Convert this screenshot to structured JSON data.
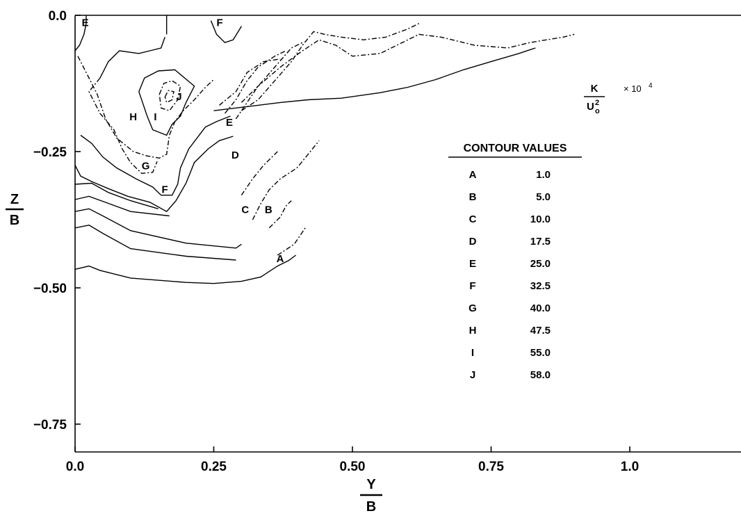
{
  "chart_data": {
    "type": "contour",
    "x_axis": {
      "label_numerator": "Y",
      "label_denominator": "B",
      "ticks": [
        {
          "value": 0.0,
          "label": "0.0"
        },
        {
          "value": 0.25,
          "label": "0.25"
        },
        {
          "value": 0.5,
          "label": "0.50"
        },
        {
          "value": 0.75,
          "label": "0.75"
        },
        {
          "value": 1.0,
          "label": "1.0"
        }
      ],
      "range": [
        0.0,
        1.2
      ]
    },
    "y_axis": {
      "label_numerator": "Z",
      "label_denominator": "B",
      "ticks": [
        {
          "value": 0.0,
          "label": "0.0"
        },
        {
          "value": -0.25,
          "label": "−0.25"
        },
        {
          "value": -0.5,
          "label": "−0.50"
        },
        {
          "value": -0.75,
          "label": "−0.75"
        }
      ],
      "range": [
        -0.8,
        0.0
      ]
    },
    "quantity": {
      "numerator": "K",
      "denominator": "U",
      "denominator_sub": "o",
      "denominator_sup": "2",
      "multiplier": "× 10",
      "multiplier_exp": "4"
    },
    "legend": {
      "title": "CONTOUR VALUES",
      "entries": [
        {
          "label": "A",
          "value": "1.0"
        },
        {
          "label": "B",
          "value": "5.0"
        },
        {
          "label": "C",
          "value": "10.0"
        },
        {
          "label": "D",
          "value": "17.5"
        },
        {
          "label": "E",
          "value": "25.0"
        },
        {
          "label": "F",
          "value": "32.5"
        },
        {
          "label": "G",
          "value": "40.0"
        },
        {
          "label": "H",
          "value": "47.5"
        },
        {
          "label": "I",
          "value": "55.0"
        },
        {
          "label": "J",
          "value": "58.0"
        }
      ]
    },
    "contour_labels": [
      {
        "label": "E",
        "x": 0.012,
        "y": -0.012
      },
      {
        "label": "F",
        "x": 0.255,
        "y": -0.012
      },
      {
        "label": "J",
        "x": 0.182,
        "y": -0.148
      },
      {
        "label": "H",
        "x": 0.098,
        "y": -0.185
      },
      {
        "label": "I",
        "x": 0.142,
        "y": -0.185
      },
      {
        "label": "E",
        "x": 0.272,
        "y": -0.195
      },
      {
        "label": "D",
        "x": 0.282,
        "y": -0.255
      },
      {
        "label": "G",
        "x": 0.12,
        "y": -0.275
      },
      {
        "label": "F",
        "x": 0.156,
        "y": -0.318
      },
      {
        "label": "C",
        "x": 0.3,
        "y": -0.355
      },
      {
        "label": "B",
        "x": 0.342,
        "y": -0.355
      },
      {
        "label": "A",
        "x": 0.363,
        "y": -0.445
      }
    ],
    "contours": [
      {
        "level": "A",
        "dashed": false,
        "points": [
          [
            0.0,
            -0.466
          ],
          [
            0.025,
            -0.46
          ],
          [
            0.045,
            -0.468
          ],
          [
            0.1,
            -0.482
          ],
          [
            0.2,
            -0.49
          ],
          [
            0.25,
            -0.492
          ],
          [
            0.3,
            -0.488
          ],
          [
            0.335,
            -0.48
          ],
          [
            0.365,
            -0.46
          ],
          [
            0.385,
            -0.45
          ],
          [
            0.398,
            -0.44
          ]
        ]
      },
      {
        "level": "A",
        "dashed": false,
        "points": [
          [
            0.0,
            -0.39
          ],
          [
            0.025,
            -0.385
          ],
          [
            0.05,
            -0.4
          ],
          [
            0.1,
            -0.428
          ],
          [
            0.2,
            -0.442
          ],
          [
            0.29,
            -0.449
          ]
        ]
      },
      {
        "level": "B",
        "dashed": false,
        "points": [
          [
            0.0,
            -0.36
          ],
          [
            0.025,
            -0.355
          ],
          [
            0.05,
            -0.368
          ],
          [
            0.1,
            -0.395
          ],
          [
            0.2,
            -0.418
          ],
          [
            0.29,
            -0.427
          ],
          [
            0.3,
            -0.42
          ]
        ]
      },
      {
        "level": "C",
        "dashed": false,
        "points": [
          [
            0.0,
            -0.338
          ],
          [
            0.025,
            -0.332
          ],
          [
            0.06,
            -0.345
          ],
          [
            0.1,
            -0.36
          ],
          [
            0.17,
            -0.368
          ]
        ]
      },
      {
        "level": "C",
        "dashed": false,
        "points": [
          [
            0.0,
            -0.31
          ],
          [
            0.03,
            -0.308
          ],
          [
            0.06,
            -0.325
          ],
          [
            0.1,
            -0.34
          ],
          [
            0.15,
            -0.355
          ]
        ]
      },
      {
        "level": "D",
        "dashed": false,
        "points": [
          [
            0.0,
            -0.275
          ],
          [
            0.01,
            -0.295
          ],
          [
            0.03,
            -0.305
          ],
          [
            0.06,
            -0.318
          ],
          [
            0.095,
            -0.332
          ],
          [
            0.135,
            -0.343
          ],
          [
            0.165,
            -0.36
          ],
          [
            0.182,
            -0.34
          ],
          [
            0.2,
            -0.308
          ],
          [
            0.215,
            -0.27
          ],
          [
            0.24,
            -0.245
          ],
          [
            0.26,
            -0.23
          ],
          [
            0.285,
            -0.222
          ]
        ]
      },
      {
        "level": "E",
        "dashed": false,
        "points": [
          [
            0.01,
            -0.22
          ],
          [
            0.03,
            -0.235
          ],
          [
            0.05,
            -0.26
          ],
          [
            0.075,
            -0.28
          ],
          [
            0.11,
            -0.3
          ],
          [
            0.14,
            -0.315
          ],
          [
            0.155,
            -0.33
          ],
          [
            0.175,
            -0.33
          ],
          [
            0.185,
            -0.31
          ],
          [
            0.19,
            -0.28
          ],
          [
            0.205,
            -0.245
          ],
          [
            0.235,
            -0.205
          ],
          [
            0.255,
            -0.195
          ],
          [
            0.28,
            -0.185
          ]
        ]
      },
      {
        "level": "F",
        "dashed": true,
        "points": [
          [
            0.005,
            -0.075
          ],
          [
            0.02,
            -0.105
          ],
          [
            0.04,
            -0.145
          ],
          [
            0.055,
            -0.19
          ],
          [
            0.075,
            -0.225
          ],
          [
            0.105,
            -0.25
          ],
          [
            0.13,
            -0.258
          ],
          [
            0.152,
            -0.262
          ],
          [
            0.165,
            -0.255
          ],
          [
            0.17,
            -0.22
          ],
          [
            0.18,
            -0.195
          ],
          [
            0.195,
            -0.175
          ],
          [
            0.215,
            -0.155
          ],
          [
            0.235,
            -0.132
          ],
          [
            0.25,
            -0.118
          ]
        ]
      },
      {
        "level": "G",
        "dashed": false,
        "points": [
          [
            0.045,
            -0.115
          ],
          [
            0.06,
            -0.085
          ],
          [
            0.08,
            -0.065
          ],
          [
            0.115,
            -0.07
          ],
          [
            0.135,
            -0.065
          ],
          [
            0.155,
            -0.06
          ],
          [
            0.162,
            -0.04
          ]
        ]
      },
      {
        "level": "G",
        "dashed": true,
        "points": [
          [
            0.045,
            -0.115
          ],
          [
            0.025,
            -0.14
          ],
          [
            0.045,
            -0.18
          ],
          [
            0.07,
            -0.21
          ],
          [
            0.085,
            -0.245
          ],
          [
            0.1,
            -0.27
          ],
          [
            0.12,
            -0.29
          ],
          [
            0.14,
            -0.288
          ],
          [
            0.148,
            -0.268
          ]
        ]
      },
      {
        "level": "H",
        "dashed": false,
        "points": [
          [
            0.115,
            -0.14
          ],
          [
            0.125,
            -0.115
          ],
          [
            0.15,
            -0.102
          ],
          [
            0.18,
            -0.1
          ],
          [
            0.215,
            -0.13
          ],
          [
            0.2,
            -0.16
          ],
          [
            0.19,
            -0.185
          ],
          [
            0.175,
            -0.2
          ],
          [
            0.165,
            -0.22
          ],
          [
            0.14,
            -0.21
          ],
          [
            0.13,
            -0.185
          ],
          [
            0.115,
            -0.14
          ]
        ]
      },
      {
        "level": "I",
        "dashed": true,
        "points": [
          [
            0.152,
            -0.145
          ],
          [
            0.16,
            -0.125
          ],
          [
            0.175,
            -0.12
          ],
          [
            0.19,
            -0.13
          ],
          [
            0.185,
            -0.155
          ],
          [
            0.17,
            -0.175
          ],
          [
            0.155,
            -0.17
          ],
          [
            0.152,
            -0.145
          ]
        ]
      },
      {
        "level": "J",
        "dashed": true,
        "points": [
          [
            0.162,
            -0.15
          ],
          [
            0.168,
            -0.138
          ],
          [
            0.178,
            -0.14
          ],
          [
            0.175,
            -0.155
          ],
          [
            0.165,
            -0.16
          ],
          [
            0.162,
            -0.15
          ]
        ]
      },
      {
        "level": "E",
        "dashed": false,
        "points": [
          [
            0.0,
            -0.065
          ],
          [
            0.008,
            -0.055
          ],
          [
            0.016,
            -0.035
          ],
          [
            0.02,
            -0.015
          ],
          [
            0.02,
            0.0
          ]
        ]
      },
      {
        "level": "F",
        "dashed": false,
        "points": [
          [
            0.165,
            -0.035
          ],
          [
            0.165,
            0.0
          ]
        ]
      },
      {
        "level": "F",
        "dashed": false,
        "points": [
          [
            0.245,
            -0.01
          ],
          [
            0.255,
            -0.035
          ],
          [
            0.27,
            -0.05
          ],
          [
            0.285,
            -0.045
          ],
          [
            0.3,
            -0.02
          ]
        ]
      },
      {
        "level": "A",
        "dashed": false,
        "points": [
          [
            0.25,
            -0.175
          ],
          [
            0.33,
            -0.165
          ],
          [
            0.37,
            -0.16
          ],
          [
            0.42,
            -0.155
          ],
          [
            0.48,
            -0.152
          ],
          [
            0.55,
            -0.142
          ],
          [
            0.6,
            -0.132
          ],
          [
            0.65,
            -0.118
          ],
          [
            0.7,
            -0.1
          ],
          [
            0.75,
            -0.085
          ],
          [
            0.8,
            -0.07
          ],
          [
            0.83,
            -0.06
          ]
        ]
      },
      {
        "level": "B",
        "dashed": true,
        "points": [
          [
            0.3,
            -0.16
          ],
          [
            0.33,
            -0.13
          ],
          [
            0.37,
            -0.095
          ],
          [
            0.41,
            -0.065
          ],
          [
            0.44,
            -0.045
          ],
          [
            0.47,
            -0.055
          ],
          [
            0.5,
            -0.075
          ],
          [
            0.55,
            -0.07
          ],
          [
            0.59,
            -0.05
          ],
          [
            0.62,
            -0.035
          ],
          [
            0.66,
            -0.04
          ],
          [
            0.72,
            -0.055
          ],
          [
            0.78,
            -0.06
          ],
          [
            0.82,
            -0.05
          ],
          [
            0.88,
            -0.04
          ],
          [
            0.9,
            -0.035
          ]
        ]
      },
      {
        "level": "C",
        "dashed": true,
        "points": [
          [
            0.3,
            -0.175
          ],
          [
            0.33,
            -0.155
          ],
          [
            0.36,
            -0.12
          ],
          [
            0.39,
            -0.085
          ],
          [
            0.41,
            -0.055
          ],
          [
            0.43,
            -0.03
          ],
          [
            0.45,
            -0.035
          ],
          [
            0.48,
            -0.04
          ],
          [
            0.52,
            -0.045
          ],
          [
            0.56,
            -0.04
          ],
          [
            0.6,
            -0.025
          ],
          [
            0.62,
            -0.015
          ]
        ]
      },
      {
        "level": "D",
        "dashed": true,
        "points": [
          [
            0.29,
            -0.19
          ],
          [
            0.31,
            -0.16
          ],
          [
            0.33,
            -0.13
          ],
          [
            0.36,
            -0.095
          ],
          [
            0.39,
            -0.06
          ],
          [
            0.41,
            -0.05
          ]
        ]
      },
      {
        "level": "E",
        "dashed": true,
        "points": [
          [
            0.27,
            -0.18
          ],
          [
            0.29,
            -0.155
          ],
          [
            0.31,
            -0.12
          ],
          [
            0.33,
            -0.095
          ],
          [
            0.36,
            -0.075
          ],
          [
            0.38,
            -0.065
          ]
        ]
      },
      {
        "level": "F",
        "dashed": true,
        "points": [
          [
            0.26,
            -0.165
          ],
          [
            0.29,
            -0.14
          ],
          [
            0.31,
            -0.105
          ],
          [
            0.34,
            -0.085
          ],
          [
            0.37,
            -0.08
          ]
        ]
      },
      {
        "level": "B",
        "dashed": true,
        "points": [
          [
            0.32,
            -0.375
          ],
          [
            0.335,
            -0.345
          ],
          [
            0.35,
            -0.32
          ],
          [
            0.37,
            -0.3
          ],
          [
            0.4,
            -0.28
          ],
          [
            0.42,
            -0.255
          ],
          [
            0.44,
            -0.23
          ]
        ]
      },
      {
        "level": "C",
        "dashed": true,
        "points": [
          [
            0.3,
            -0.33
          ],
          [
            0.32,
            -0.3
          ],
          [
            0.34,
            -0.275
          ],
          [
            0.365,
            -0.25
          ]
        ]
      },
      {
        "level": "B",
        "dashed": true,
        "points": [
          [
            0.35,
            -0.39
          ],
          [
            0.37,
            -0.37
          ],
          [
            0.38,
            -0.35
          ],
          [
            0.39,
            -0.34
          ]
        ]
      },
      {
        "level": "A",
        "dashed": true,
        "points": [
          [
            0.365,
            -0.44
          ],
          [
            0.395,
            -0.42
          ],
          [
            0.415,
            -0.39
          ]
        ]
      }
    ]
  }
}
